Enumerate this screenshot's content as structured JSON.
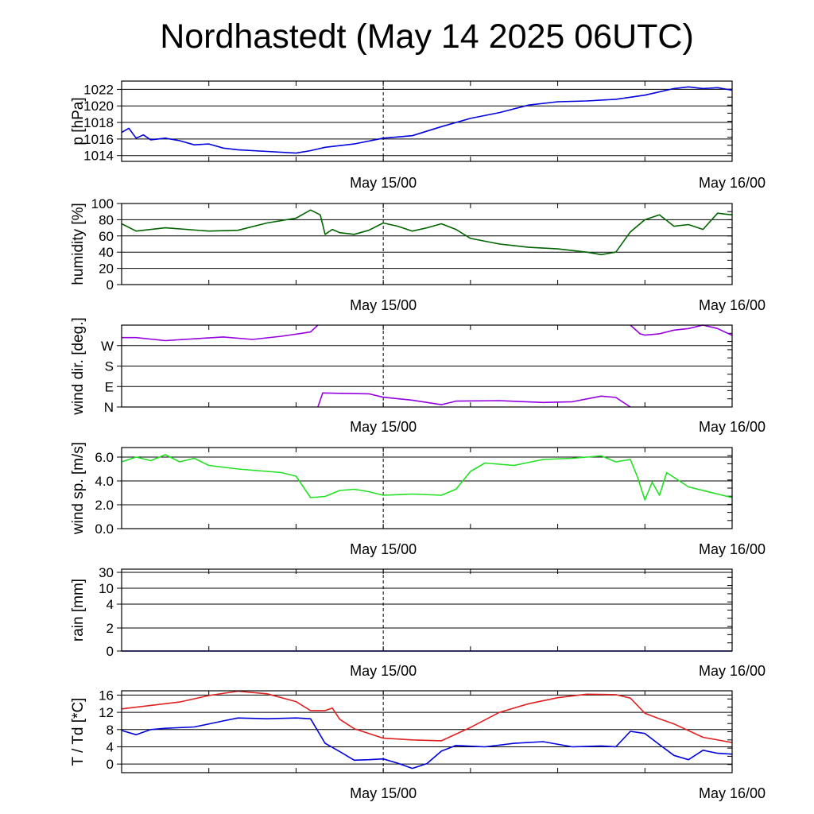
{
  "title": "Nordhastedt (May 14 2025 06UTC)",
  "x_axis": {
    "start": "2025-05-14T06:00Z",
    "end": "2025-05-16T00:00Z",
    "tick_labels": [
      "May 15/00",
      "May 16/00"
    ]
  },
  "colors": {
    "pressure": "#0000dd",
    "humidity": "#006400",
    "wind_dir": "#9400e0",
    "wind_speed": "#22e022",
    "rain": "#0000dd",
    "temperature": "#e02020",
    "dewpoint": "#0000dd"
  },
  "chart_data": [
    {
      "type": "line",
      "ylabel": "p [hPa]",
      "ylim": [
        1013.3,
        1023.0
      ],
      "yticks": [
        1014,
        1016,
        1018,
        1020,
        1022
      ],
      "ytick_labels": [
        "1014",
        "1016",
        "1018",
        "1020",
        "1022"
      ],
      "series": [
        {
          "color": "#0000dd",
          "x": [
            "05-14 06:00",
            "05-14 06:30",
            "05-14 07:00",
            "05-14 07:30",
            "05-14 08:00",
            "05-14 09:00",
            "05-14 10:00",
            "05-14 11:00",
            "05-14 12:00",
            "05-14 13:00",
            "05-14 14:00",
            "05-14 16:00",
            "05-14 18:00",
            "05-14 19:00",
            "05-14 20:00",
            "05-14 22:00",
            "05-15 00:00",
            "05-15 02:00",
            "05-15 04:00",
            "05-15 06:00",
            "05-15 08:00",
            "05-15 10:00",
            "05-15 12:00",
            "05-15 14:00",
            "05-15 16:00",
            "05-15 18:00",
            "05-15 20:00",
            "05-15 21:00",
            "05-15 22:00",
            "05-15 23:00",
            "05-16 00:00"
          ],
          "y": [
            1016.8,
            1017.3,
            1016.1,
            1016.5,
            1015.9,
            1016.1,
            1015.8,
            1015.3,
            1015.4,
            1014.9,
            1014.7,
            1014.5,
            1014.3,
            1014.6,
            1015.0,
            1015.4,
            1016.1,
            1016.4,
            1017.5,
            1018.5,
            1019.2,
            1020.1,
            1020.5,
            1020.6,
            1020.8,
            1021.3,
            1022.1,
            1022.3,
            1022.1,
            1022.2,
            1021.9
          ]
        }
      ]
    },
    {
      "type": "line",
      "ylabel": "humidity [%]",
      "ylim": [
        0,
        100
      ],
      "yticks": [
        0,
        20,
        40,
        60,
        80,
        100
      ],
      "ytick_labels": [
        "0",
        "20",
        "40",
        "60",
        "80",
        "100"
      ],
      "series": [
        {
          "color": "#006400",
          "x": [
            "05-14 06:00",
            "05-14 07:00",
            "05-14 09:00",
            "05-14 12:00",
            "05-14 14:00",
            "05-14 16:00",
            "05-14 18:00",
            "05-14 19:00",
            "05-14 19:40",
            "05-14 20:00",
            "05-14 20:30",
            "05-14 21:00",
            "05-14 22:00",
            "05-14 23:00",
            "05-15 00:00",
            "05-15 01:00",
            "05-15 02:00",
            "05-15 03:00",
            "05-15 04:00",
            "05-15 05:00",
            "05-15 06:00",
            "05-15 08:00",
            "05-15 10:00",
            "05-15 12:00",
            "05-15 14:00",
            "05-15 15:00",
            "05-15 16:00",
            "05-15 17:00",
            "05-15 18:00",
            "05-15 19:00",
            "05-15 20:00",
            "05-15 21:00",
            "05-15 22:00",
            "05-15 23:00",
            "05-16 00:00"
          ],
          "y": [
            75,
            66,
            70,
            66,
            67,
            76,
            82,
            92,
            86,
            62,
            68,
            64,
            62,
            67,
            76,
            72,
            66,
            70,
            75,
            68,
            57,
            50,
            46,
            44,
            40,
            37,
            40,
            65,
            80,
            86,
            72,
            74,
            68,
            88,
            86
          ]
        }
      ]
    },
    {
      "type": "line",
      "ylabel": "wind dir. [deg.]",
      "ylim": [
        0,
        360
      ],
      "yticks": [
        0,
        90,
        180,
        270
      ],
      "ytick_labels": [
        "N",
        "E",
        "S",
        "W"
      ],
      "series": [
        {
          "color": "#9400e0",
          "segments": [
            {
              "x": [
                "05-14 06:00",
                "05-14 07:00",
                "05-14 09:00",
                "05-14 11:00",
                "05-14 13:00",
                "05-14 15:00",
                "05-14 17:00",
                "05-14 19:00",
                "05-14 19:30"
              ],
              "y": [
                305,
                305,
                292,
                300,
                308,
                297,
                311,
                330,
                360
              ]
            },
            {
              "x": [
                "05-14 19:30",
                "05-14 19:50",
                "05-14 21:00",
                "05-14 23:00",
                "05-15 00:00",
                "05-15 02:00",
                "05-15 04:00",
                "05-15 05:00",
                "05-15 08:00",
                "05-15 11:00",
                "05-15 13:00",
                "05-15 15:00",
                "05-15 16:00",
                "05-15 17:00"
              ],
              "y": [
                0,
                62,
                60,
                58,
                43,
                30,
                10,
                26,
                28,
                20,
                23,
                48,
                42,
                0
              ]
            },
            {
              "x": [
                "05-15 17:00",
                "05-15 17:40",
                "05-15 18:00",
                "05-15 19:00",
                "05-15 20:00",
                "05-15 21:00",
                "05-15 22:00",
                "05-15 23:00",
                "05-16 00:00"
              ],
              "y": [
                360,
                322,
                316,
                322,
                338,
                345,
                360,
                345,
                315
              ]
            }
          ]
        }
      ]
    },
    {
      "type": "line",
      "ylabel": "wind sp. [m/s]",
      "ylim": [
        0,
        6.8
      ],
      "yticks": [
        0,
        2,
        4,
        6
      ],
      "ytick_labels": [
        "0.0",
        "2.0",
        "4.0",
        "6.0"
      ],
      "series": [
        {
          "color": "#22e022",
          "x": [
            "05-14 06:00",
            "05-14 07:00",
            "05-14 08:00",
            "05-14 09:00",
            "05-14 10:00",
            "05-14 11:00",
            "05-14 12:00",
            "05-14 14:00",
            "05-14 16:00",
            "05-14 17:00",
            "05-14 18:00",
            "05-14 19:00",
            "05-14 20:00",
            "05-14 21:00",
            "05-14 22:00",
            "05-14 23:00",
            "05-15 00:00",
            "05-15 02:00",
            "05-15 04:00",
            "05-15 05:00",
            "05-15 06:00",
            "05-15 07:00",
            "05-15 09:00",
            "05-15 11:00",
            "05-15 13:00",
            "05-15 15:00",
            "05-15 16:00",
            "05-15 17:00",
            "05-15 17:30",
            "05-15 18:00",
            "05-15 18:30",
            "05-15 19:00",
            "05-15 19:30",
            "05-15 21:00",
            "05-15 23:00",
            "05-16 00:00"
          ],
          "y": [
            5.6,
            6.0,
            5.7,
            6.2,
            5.6,
            5.9,
            5.3,
            5.0,
            4.8,
            4.7,
            4.4,
            2.6,
            2.7,
            3.2,
            3.3,
            3.1,
            2.8,
            2.9,
            2.8,
            3.3,
            4.8,
            5.5,
            5.3,
            5.8,
            5.9,
            6.1,
            5.6,
            5.8,
            4.3,
            2.4,
            3.9,
            2.8,
            4.7,
            3.5,
            2.9,
            2.6
          ]
        }
      ]
    },
    {
      "type": "line",
      "ylabel": "rain [mm]",
      "ylim": [
        0,
        30
      ],
      "yticks": [
        0,
        2,
        4,
        10,
        30
      ],
      "ytick_labels": [
        "0",
        "2",
        "4",
        "10",
        "30"
      ],
      "series": [
        {
          "color": "#0000dd",
          "x": [
            "05-14 06:00",
            "05-16 00:00"
          ],
          "y": [
            0,
            0
          ]
        }
      ]
    },
    {
      "type": "line",
      "ylabel": "T / Td [*C]",
      "ylim": [
        -2,
        17
      ],
      "yticks": [
        0,
        4,
        8,
        12,
        16
      ],
      "ytick_labels": [
        "0",
        "4",
        "8",
        "12",
        "16"
      ],
      "series": [
        {
          "color": "#e02020",
          "x": [
            "05-14 06:00",
            "05-14 08:00",
            "05-14 10:00",
            "05-14 12:00",
            "05-14 14:00",
            "05-14 16:00",
            "05-14 18:00",
            "05-14 19:00",
            "05-14 20:00",
            "05-14 20:30",
            "05-14 21:00",
            "05-14 22:00",
            "05-15 00:00",
            "05-15 02:00",
            "05-15 04:00",
            "05-15 06:00",
            "05-15 08:00",
            "05-15 10:00",
            "05-15 12:00",
            "05-15 14:00",
            "05-15 16:00",
            "05-15 17:00",
            "05-15 18:00",
            "05-15 19:00",
            "05-15 20:00",
            "05-15 22:00",
            "05-16 00:00"
          ],
          "y": [
            12.8,
            13.6,
            14.4,
            15.9,
            16.9,
            16.3,
            14.5,
            12.4,
            12.4,
            13.0,
            10.4,
            8.2,
            6.0,
            5.6,
            5.4,
            8.5,
            12.0,
            14.0,
            15.4,
            16.2,
            16.1,
            15.3,
            11.8,
            10.5,
            9.3,
            6.2,
            5.0
          ]
        },
        {
          "color": "#0000dd",
          "x": [
            "05-14 06:00",
            "05-14 07:00",
            "05-14 08:00",
            "05-14 09:00",
            "05-14 11:00",
            "05-14 13:00",
            "05-14 14:00",
            "05-14 16:00",
            "05-14 18:00",
            "05-14 19:00",
            "05-14 20:00",
            "05-14 21:00",
            "05-14 22:00",
            "05-14 23:00",
            "05-15 00:00",
            "05-15 01:00",
            "05-15 02:00",
            "05-15 03:00",
            "05-15 04:00",
            "05-15 05:00",
            "05-15 07:00",
            "05-15 09:00",
            "05-15 11:00",
            "05-15 13:00",
            "05-15 15:00",
            "05-15 16:00",
            "05-15 17:00",
            "05-15 18:00",
            "05-15 19:00",
            "05-15 20:00",
            "05-15 21:00",
            "05-15 22:00",
            "05-15 23:00",
            "05-16 00:00"
          ],
          "y": [
            7.8,
            6.8,
            8.0,
            8.3,
            8.6,
            10.0,
            10.7,
            10.5,
            10.7,
            10.5,
            4.8,
            2.9,
            0.9,
            1.0,
            1.2,
            0.2,
            -1.0,
            0.1,
            3.0,
            4.3,
            4.0,
            4.8,
            5.2,
            4.0,
            4.2,
            4.0,
            7.6,
            7.1,
            4.5,
            2.0,
            1.0,
            3.2,
            2.5,
            2.3
          ]
        }
      ]
    }
  ]
}
